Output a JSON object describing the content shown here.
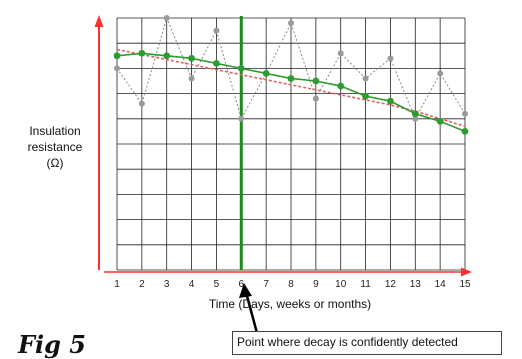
{
  "figure_label": "Fig 5",
  "chart_data": {
    "type": "line",
    "ylabel_lines": [
      "Insulation",
      "resistance",
      "(Ω)"
    ],
    "xlabel": "Time (Days, weeks or months)",
    "x": [
      1,
      2,
      3,
      4,
      5,
      6,
      7,
      8,
      9,
      10,
      11,
      12,
      13,
      14,
      15
    ],
    "xlim": [
      1,
      15
    ],
    "ylim": [
      0,
      10
    ],
    "grid": true,
    "series": [
      {
        "values": [
          8.0,
          6.6,
          10.0,
          7.6,
          9.5,
          6.0,
          7.8,
          9.8,
          6.8,
          8.6,
          7.6,
          8.4,
          6.0,
          7.8,
          6.2
        ],
        "color": "#888888",
        "style": "dotted",
        "marker": "gray-circle"
      },
      {
        "values": [
          8.5,
          8.6,
          8.5,
          8.4,
          8.2,
          8.0,
          7.8,
          7.6,
          7.5,
          7.3,
          6.9,
          6.7,
          6.2,
          5.9,
          5.5
        ],
        "color": "#2e9b2e",
        "style": "solid",
        "marker": "green-circle"
      },
      {
        "values": [
          8.75,
          8.55,
          8.35,
          8.15,
          7.95,
          7.75,
          7.55,
          7.35,
          7.15,
          6.95,
          6.75,
          6.55,
          6.3,
          6.0,
          5.7
        ],
        "color": "#e06060",
        "style": "dotted",
        "marker": "none"
      }
    ],
    "marker_x": 6,
    "marker_color": "#1e8a1e",
    "axis_color": "#ff3030",
    "annotation": "Point where decay is confidently detected"
  }
}
